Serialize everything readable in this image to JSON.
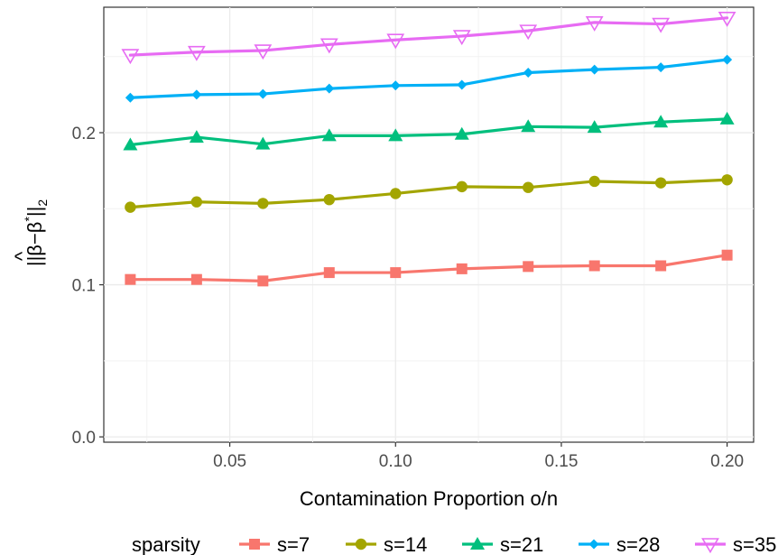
{
  "chart_data": {
    "type": "line",
    "xlabel": "Contamination Proportion o/n",
    "ylabel": "||β̂ − β*||₂",
    "ylabel_parts": {
      "norm_open": "||",
      "beta": "β",
      "hat": "^",
      "minus": "−",
      "star": "*",
      "norm_close": "||",
      "sub": "2"
    },
    "x": [
      0.02,
      0.04,
      0.06,
      0.08,
      0.1,
      0.12,
      0.14,
      0.16,
      0.18,
      0.2
    ],
    "xlim": [
      0.012,
      0.208
    ],
    "ylim": [
      -0.0035,
      0.2825
    ],
    "x_ticks": [
      0.05,
      0.1,
      0.15,
      0.2
    ],
    "x_tick_labels": [
      "0.05",
      "0.10",
      "0.15",
      "0.20"
    ],
    "y_ticks": [
      0.0,
      0.1,
      0.2
    ],
    "y_tick_labels": [
      "0.0",
      "0.1",
      "0.2"
    ],
    "grid": true,
    "legend_position": "bottom",
    "legend_title": "sparsity",
    "series": [
      {
        "name": "s=7",
        "color": "#F8766D",
        "marker": "square",
        "values": [
          0.1035,
          0.1035,
          0.1025,
          0.108,
          0.108,
          0.1105,
          0.112,
          0.1125,
          0.1125,
          0.1195
        ]
      },
      {
        "name": "s=14",
        "color": "#A3A500",
        "marker": "circle",
        "values": [
          0.151,
          0.1545,
          0.1535,
          0.156,
          0.16,
          0.1645,
          0.164,
          0.168,
          0.167,
          0.169
        ]
      },
      {
        "name": "s=21",
        "color": "#00BF7D",
        "marker": "triangle-up",
        "values": [
          0.192,
          0.197,
          0.1925,
          0.198,
          0.198,
          0.199,
          0.204,
          0.2035,
          0.207,
          0.209
        ]
      },
      {
        "name": "s=28",
        "color": "#00B0F6",
        "marker": "diamond",
        "values": [
          0.223,
          0.225,
          0.2255,
          0.229,
          0.231,
          0.2315,
          0.2395,
          0.2415,
          0.243,
          0.248
        ]
      },
      {
        "name": "s=35",
        "color": "#E76BF3",
        "marker": "triangle-down-open",
        "values": [
          0.251,
          0.253,
          0.254,
          0.258,
          0.261,
          0.2635,
          0.267,
          0.2725,
          0.2715,
          0.2755
        ]
      }
    ]
  }
}
